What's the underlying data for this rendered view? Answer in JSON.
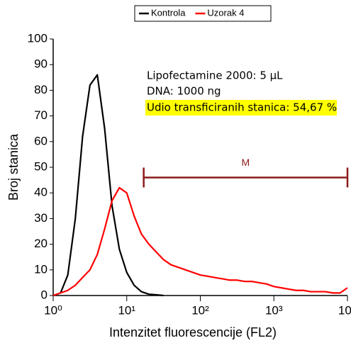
{
  "chart_data": {
    "type": "line",
    "xlabel": "Intenzitet fluorescencije (FL2)",
    "ylabel": "Broj stanica",
    "log_x": true,
    "xlim": [
      1,
      10000
    ],
    "ylim": [
      0,
      100
    ],
    "xticks": [
      {
        "value": 1,
        "label": "10⁰"
      },
      {
        "value": 10,
        "label": "10¹"
      },
      {
        "value": 100,
        "label": "10²"
      },
      {
        "value": 1000,
        "label": "10³"
      },
      {
        "value": 10000,
        "label": "10⁴"
      }
    ],
    "yticks": [
      0,
      10,
      20,
      30,
      40,
      50,
      60,
      70,
      80,
      90,
      100
    ],
    "legend": "top",
    "x": [
      1,
      1.26,
      1.58,
      2,
      2.51,
      3.16,
      3.98,
      5.01,
      6.31,
      7.94,
      10,
      12.6,
      15.8,
      20,
      25.1,
      31.6,
      39.8,
      50.1,
      63.1,
      79.4,
      100,
      126,
      158,
      200,
      251,
      316,
      398,
      501,
      631,
      794,
      1000,
      1260,
      1580,
      2000,
      2510,
      3160,
      3980,
      5010,
      6310,
      7940,
      10000
    ],
    "series": [
      {
        "name": "Kontrola",
        "color": "#000000",
        "values": [
          0,
          1,
          8,
          30,
          62,
          82,
          86,
          65,
          35,
          18,
          9,
          4,
          1.5,
          0.5,
          0.3,
          0,
          null,
          null,
          null,
          null,
          null,
          null,
          null,
          null,
          null,
          null,
          null,
          null,
          null,
          null,
          null,
          null,
          null,
          null,
          null,
          null,
          null,
          null,
          null,
          null,
          null
        ]
      },
      {
        "name": "Uzorak 4",
        "color": "#ff0000",
        "values": [
          0,
          1,
          2,
          4,
          7,
          10,
          16,
          26,
          37,
          42,
          40,
          31,
          24,
          20,
          17,
          14,
          12,
          11,
          10,
          9,
          8,
          7.5,
          7,
          6.5,
          6,
          6,
          5.5,
          5.5,
          5,
          4.5,
          3.5,
          3,
          2.5,
          2,
          2,
          1.5,
          1.5,
          1.5,
          1,
          1,
          3
        ]
      }
    ],
    "annotations": [
      "Lipofectamine 2000: 5 µL",
      "DNA: 1000 ng",
      "Udio transficiranih stanica: 54,67 %"
    ],
    "gate": {
      "label": "M",
      "range": [
        17,
        10000
      ],
      "y": 46,
      "color": "#8b1a1a"
    }
  }
}
